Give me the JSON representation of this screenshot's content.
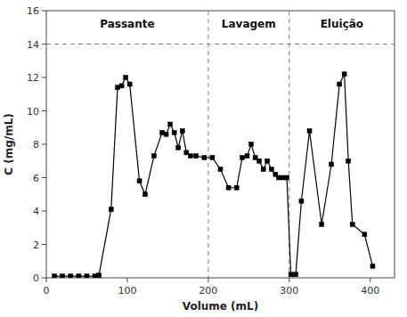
{
  "chart_data": {
    "type": "line",
    "xlabel": "Volume (mL)",
    "ylabel": "C (mg/mL)",
    "x": [
      10,
      20,
      30,
      40,
      50,
      60,
      65,
      80,
      88,
      93,
      98,
      103,
      115,
      122,
      133,
      143,
      148,
      153,
      158,
      163,
      168,
      173,
      178,
      185,
      195,
      205,
      215,
      225,
      235,
      242,
      248,
      253,
      258,
      263,
      268,
      273,
      278,
      283,
      287,
      292,
      297,
      302,
      308,
      315,
      325,
      340,
      352,
      362,
      368,
      373,
      378,
      393,
      403
    ],
    "values": [
      0.1,
      0.1,
      0.1,
      0.1,
      0.1,
      0.1,
      0.15,
      4.1,
      11.4,
      11.5,
      12.0,
      11.6,
      5.8,
      5.0,
      7.3,
      8.7,
      8.6,
      9.2,
      8.7,
      7.8,
      8.8,
      7.5,
      7.3,
      7.3,
      7.2,
      7.2,
      6.5,
      5.4,
      5.4,
      7.2,
      7.3,
      8.0,
      7.2,
      7.0,
      6.5,
      7.0,
      6.5,
      6.2,
      6.0,
      6.0,
      6.0,
      0.2,
      0.2,
      4.6,
      8.8,
      3.2,
      6.8,
      11.6,
      12.2,
      7.0,
      3.2,
      2.6,
      0.7
    ],
    "color": "black",
    "marker": "square",
    "vlines": [
      200,
      300
    ],
    "hlines": [
      14
    ],
    "annotations": [
      {
        "text": "Passante",
        "x": 100,
        "y": 15.2
      },
      {
        "text": "Lavagem",
        "x": 250,
        "y": 15.2
      },
      {
        "text": "Eluição",
        "x": 365,
        "y": 15.2
      }
    ],
    "xlim": [
      0,
      430
    ],
    "ylim": [
      0,
      16
    ],
    "xticks": [
      0,
      100,
      200,
      300,
      400
    ],
    "yticks": [
      0,
      2,
      4,
      6,
      8,
      10,
      12,
      14,
      16
    ],
    "grid": false
  }
}
